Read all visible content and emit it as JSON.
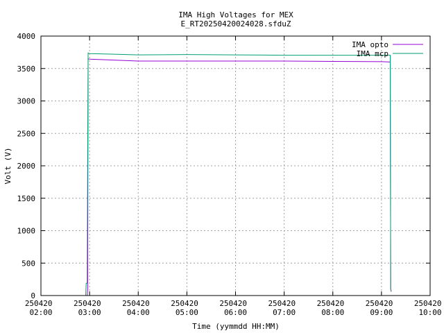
{
  "chart_data": {
    "type": "line",
    "title": "IMA High Voltages for MEX",
    "subtitle": "E_RT20250420024028.sfduZ",
    "x_label": "Time (yymmdd HH:MM)",
    "y_label": "Volt (V)",
    "xlim": [
      2,
      10
    ],
    "xticks": [
      {
        "value": 2,
        "label": "250420 02:00"
      },
      {
        "value": 3,
        "label": "250420 03:00"
      },
      {
        "value": 4,
        "label": "250420 04:00"
      },
      {
        "value": 5,
        "label": "250420 05:00"
      },
      {
        "value": 6,
        "label": "250420 06:00"
      },
      {
        "value": 7,
        "label": "250420 07:00"
      },
      {
        "value": 8,
        "label": "250420 08:00"
      },
      {
        "value": 9,
        "label": "250420 09:00"
      },
      {
        "value": 10,
        "label": "250420 10:00"
      }
    ],
    "ylim": [
      0,
      4000
    ],
    "yticks": [
      0,
      500,
      1000,
      1500,
      2000,
      2500,
      3000,
      3500,
      4000
    ],
    "grid": true,
    "legend": "top-right",
    "series": [
      {
        "name": "IMA opto",
        "color": "#9400d3",
        "x": [
          2.95,
          2.96,
          2.97,
          3.0,
          3.5,
          4.0,
          5.0,
          6.0,
          7.0,
          8.0,
          9.0,
          9.18,
          9.19,
          9.2
        ],
        "values": [
          0,
          100,
          3650,
          3645,
          3630,
          3615,
          3615,
          3615,
          3615,
          3610,
          3605,
          3600,
          100,
          60
        ]
      },
      {
        "name": "IMA mcp",
        "color": "#009e73",
        "x": [
          2.92,
          2.93,
          2.95,
          2.97,
          3.0,
          3.5,
          4.0,
          5.0,
          6.0,
          7.0,
          8.0,
          9.0,
          9.18,
          9.19,
          9.2
        ],
        "values": [
          0,
          190,
          190,
          3740,
          3730,
          3720,
          3710,
          3715,
          3710,
          3705,
          3705,
          3705,
          3705,
          100,
          60
        ]
      }
    ]
  }
}
